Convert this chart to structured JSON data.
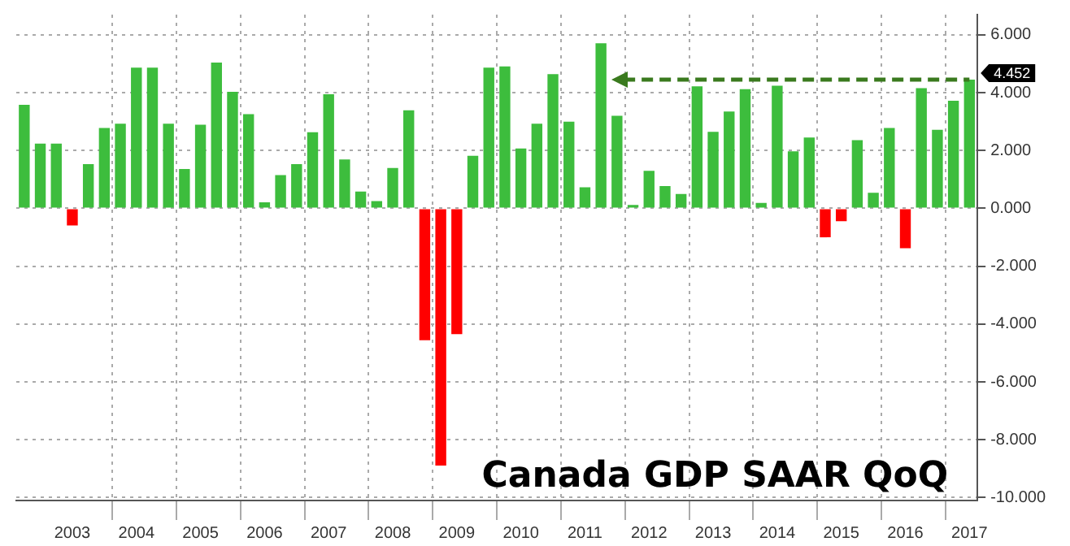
{
  "chart_data": {
    "type": "bar",
    "title": "Canada GDP SAAR QoQ",
    "categories": [
      null,
      null,
      null,
      "2003",
      null,
      null,
      null,
      "2004",
      null,
      null,
      null,
      "2005",
      null,
      null,
      null,
      "2006",
      null,
      null,
      null,
      "2007",
      null,
      null,
      null,
      "2008",
      null,
      null,
      null,
      "2009",
      null,
      null,
      null,
      "2010",
      null,
      null,
      null,
      "2011",
      null,
      null,
      null,
      "2012",
      null,
      null,
      null,
      "2013",
      null,
      null,
      null,
      "2014",
      null,
      null,
      null,
      "2015",
      null,
      null,
      null,
      "2016",
      null,
      null,
      null,
      "2017"
    ],
    "values": [
      3.58,
      2.24,
      2.24,
      -0.59,
      1.53,
      2.78,
      2.93,
      4.87,
      4.87,
      2.93,
      1.36,
      2.89,
      5.04,
      4.03,
      3.26,
      0.21,
      1.15,
      1.53,
      2.63,
      3.95,
      1.69,
      0.58,
      0.25,
      1.4,
      3.39,
      -4.56,
      -8.89,
      -4.35,
      1.82,
      4.87,
      4.91,
      2.07,
      2.93,
      4.64,
      3.0,
      0.73,
      5.71,
      3.2,
      0.12,
      1.3,
      0.77,
      0.5,
      4.22,
      2.65,
      3.35,
      4.12,
      0.19,
      4.24,
      1.97,
      2.45,
      -1.0,
      -0.44,
      2.36,
      0.54,
      2.78,
      -1.38,
      4.16,
      2.72,
      3.72,
      4.452
    ],
    "colors": [
      "#3dbd3d",
      "#3dbd3d",
      "#3dbd3d",
      "#ff0000",
      "#3dbd3d",
      "#3dbd3d",
      "#3dbd3d",
      "#3dbd3d",
      "#3dbd3d",
      "#3dbd3d",
      "#3dbd3d",
      "#3dbd3d",
      "#3dbd3d",
      "#3dbd3d",
      "#3dbd3d",
      "#3dbd3d",
      "#3dbd3d",
      "#3dbd3d",
      "#3dbd3d",
      "#3dbd3d",
      "#3dbd3d",
      "#3dbd3d",
      "#3dbd3d",
      "#3dbd3d",
      "#3dbd3d",
      "#ff0000",
      "#ff0000",
      "#ff0000",
      "#3dbd3d",
      "#3dbd3d",
      "#3dbd3d",
      "#3dbd3d",
      "#3dbd3d",
      "#3dbd3d",
      "#3dbd3d",
      "#3dbd3d",
      "#3dbd3d",
      "#3dbd3d",
      "#3dbd3d",
      "#3dbd3d",
      "#3dbd3d",
      "#3dbd3d",
      "#3dbd3d",
      "#3dbd3d",
      "#3dbd3d",
      "#3dbd3d",
      "#3dbd3d",
      "#3dbd3d",
      "#3dbd3d",
      "#3dbd3d",
      "#ff0000",
      "#ff0000",
      "#3dbd3d",
      "#3dbd3d",
      "#3dbd3d",
      "#ff0000",
      "#3dbd3d",
      "#3dbd3d",
      "#3dbd3d",
      "#3dbd3d"
    ],
    "ylim": [
      -10.1,
      6.7
    ],
    "yticks": [
      {
        "value": -10,
        "label": "-10.000"
      },
      {
        "value": -8,
        "label": "-8.000"
      },
      {
        "value": -6,
        "label": "-6.000"
      },
      {
        "value": -4,
        "label": "-4.000"
      },
      {
        "value": -2,
        "label": "-2.000"
      },
      {
        "value": 0,
        "label": "0.000"
      },
      {
        "value": 2,
        "label": "2.000"
      },
      {
        "value": 4,
        "label": "4.000"
      },
      {
        "value": 6,
        "label": "6.000"
      }
    ],
    "ref_lines": [
      {
        "axis": "y",
        "value": 4.452,
        "label": "4.452",
        "color": "#3a7a1e",
        "line_style": "dashed"
      }
    ],
    "grid": true,
    "legend": false
  }
}
